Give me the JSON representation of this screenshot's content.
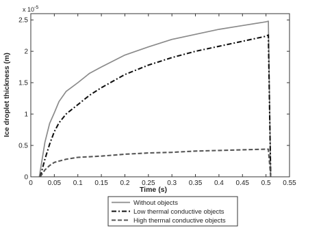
{
  "chart_data": {
    "type": "line",
    "title": "",
    "xlabel": "Time (s)",
    "ylabel": "Ice droplet thickness (m)",
    "y_scale_base": "x 10",
    "y_scale_exponent": "-5",
    "xlim": [
      0,
      0.55
    ],
    "ylim": [
      0,
      2.6
    ],
    "x_ticks": [
      0,
      0.05,
      0.1,
      0.15,
      0.2,
      0.25,
      0.3,
      0.35,
      0.4,
      0.45,
      0.5,
      0.55
    ],
    "x_tick_labels": [
      "0",
      "0.05",
      "0.1",
      "0.15",
      "0.2",
      "0.25",
      "0.3",
      "0.35",
      "0.4",
      "0.45",
      "0.5",
      "0.55"
    ],
    "y_ticks": [
      0,
      0.5,
      1,
      1.5,
      2,
      2.5
    ],
    "y_tick_labels": [
      "0",
      "0.5",
      "1",
      "1.5",
      "2",
      "2.5"
    ],
    "grid": false,
    "legend_position": "bottom-center",
    "series": [
      {
        "name": "Without objects",
        "style": "solid",
        "color": "#8a8a8a",
        "points": [
          [
            0.018,
            0
          ],
          [
            0.022,
            0.18
          ],
          [
            0.03,
            0.55
          ],
          [
            0.04,
            0.85
          ],
          [
            0.05,
            1.02
          ],
          [
            0.06,
            1.2
          ],
          [
            0.075,
            1.36
          ],
          [
            0.1,
            1.5
          ],
          [
            0.125,
            1.65
          ],
          [
            0.15,
            1.75
          ],
          [
            0.2,
            1.94
          ],
          [
            0.25,
            2.07
          ],
          [
            0.3,
            2.19
          ],
          [
            0.35,
            2.27
          ],
          [
            0.4,
            2.35
          ],
          [
            0.45,
            2.41
          ],
          [
            0.5,
            2.47
          ],
          [
            0.505,
            2.48
          ],
          [
            0.51,
            0
          ]
        ]
      },
      {
        "name": "Low thermal conductive objects",
        "style": "dashdot",
        "color": "#111111",
        "points": [
          [
            0.02,
            0
          ],
          [
            0.03,
            0.28
          ],
          [
            0.04,
            0.52
          ],
          [
            0.05,
            0.72
          ],
          [
            0.06,
            0.86
          ],
          [
            0.075,
            1.0
          ],
          [
            0.1,
            1.15
          ],
          [
            0.125,
            1.3
          ],
          [
            0.15,
            1.42
          ],
          [
            0.2,
            1.63
          ],
          [
            0.25,
            1.78
          ],
          [
            0.3,
            1.9
          ],
          [
            0.35,
            2.0
          ],
          [
            0.4,
            2.08
          ],
          [
            0.45,
            2.16
          ],
          [
            0.5,
            2.24
          ],
          [
            0.505,
            2.26
          ],
          [
            0.51,
            0
          ]
        ]
      },
      {
        "name": "High thermal conductive objects",
        "style": "dashed",
        "color": "#555555",
        "points": [
          [
            0.02,
            0
          ],
          [
            0.03,
            0.11
          ],
          [
            0.04,
            0.18
          ],
          [
            0.05,
            0.23
          ],
          [
            0.075,
            0.28
          ],
          [
            0.1,
            0.31
          ],
          [
            0.15,
            0.33
          ],
          [
            0.2,
            0.36
          ],
          [
            0.25,
            0.38
          ],
          [
            0.3,
            0.39
          ],
          [
            0.35,
            0.41
          ],
          [
            0.4,
            0.42
          ],
          [
            0.45,
            0.43
          ],
          [
            0.5,
            0.44
          ],
          [
            0.505,
            0.44
          ],
          [
            0.51,
            0
          ]
        ]
      }
    ]
  }
}
